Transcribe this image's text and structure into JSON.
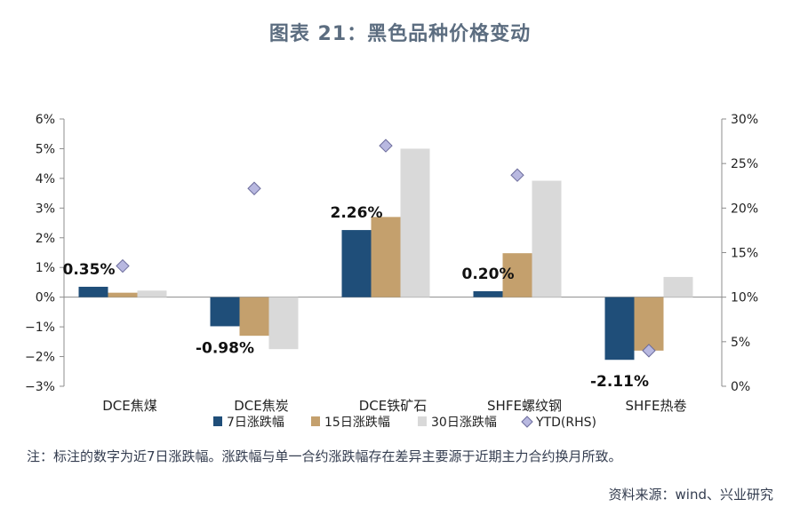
{
  "chart_data": {
    "type": "bar",
    "title": "图表 21：黑色品种价格变动",
    "categories": [
      "DCE焦煤",
      "DCE焦炭",
      "DCE铁矿石",
      "SHFE螺纹钢",
      "SHFE热卷"
    ],
    "series": [
      {
        "name": "7日涨跌幅",
        "axis": "left",
        "values": [
          0.35,
          -0.98,
          2.26,
          0.2,
          -2.11
        ],
        "color": "#1f4e79"
      },
      {
        "name": "15日涨跌幅",
        "axis": "left",
        "values": [
          0.15,
          -1.3,
          2.7,
          1.48,
          -1.8
        ],
        "color": "#c4a06d"
      },
      {
        "name": "30日涨跌幅",
        "axis": "left",
        "values": [
          0.22,
          -1.75,
          5.0,
          3.92,
          0.68
        ],
        "color": "#d9d9d9"
      },
      {
        "name": "YTD(RHS)",
        "axis": "right",
        "type": "scatter",
        "values": [
          13.5,
          22.2,
          27.0,
          23.7,
          4.0
        ],
        "color": "#b8b8e0"
      }
    ],
    "data_labels": [
      "0.35%",
      "-0.98%",
      "2.26%",
      "0.20%",
      "-2.11%"
    ],
    "y_left": {
      "min": -3,
      "max": 6,
      "step": 1,
      "ticks": [
        "−3%",
        "−2%",
        "−1%",
        "0%",
        "1%",
        "2%",
        "3%",
        "4%",
        "5%",
        "6%"
      ]
    },
    "y_right": {
      "min": 0,
      "max": 30,
      "step": 5,
      "ticks": [
        "0%",
        "5%",
        "10%",
        "15%",
        "20%",
        "25%",
        "30%"
      ]
    },
    "legend": [
      "7日涨跌幅",
      "15日涨跌幅",
      "30日涨跌幅",
      "YTD(RHS)"
    ],
    "legend_position": "bottom"
  },
  "note": "注：标注的数字为近7日涨跌幅。涨跌幅与单一合约涨跌幅存在差异主要源于近期主力合约换月所致。",
  "source": "资料来源：wind、兴业研究"
}
